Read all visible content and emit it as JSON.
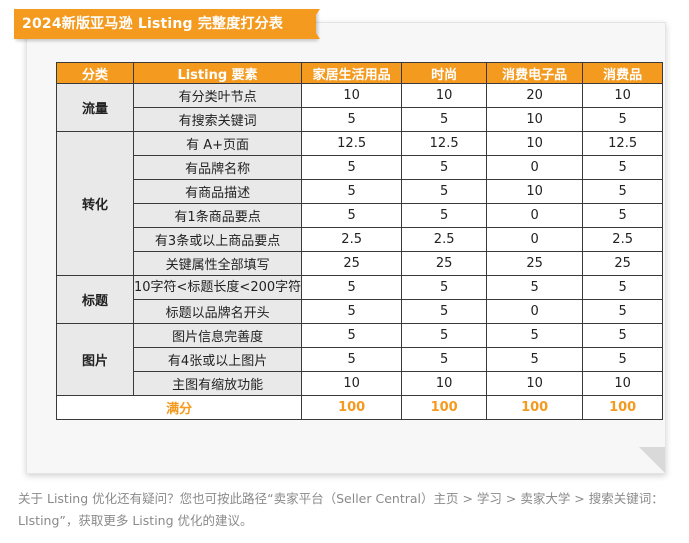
{
  "title": "2024新版亚马逊 Listing 完整度打分表",
  "headers": [
    "分类",
    "Listing 要素",
    "家居生活用品",
    "时尚",
    "消费电子品",
    "消费品"
  ],
  "groups": [
    {
      "category": "流量",
      "rows": [
        {
          "item": "有分类叶节点",
          "values": [
            "10",
            "10",
            "20",
            "10"
          ]
        },
        {
          "item": "有搜索关键词",
          "values": [
            "5",
            "5",
            "10",
            "5"
          ]
        }
      ]
    },
    {
      "category": "转化",
      "rows": [
        {
          "item": "有 A+页面",
          "values": [
            "12.5",
            "12.5",
            "10",
            "12.5"
          ]
        },
        {
          "item": "有品牌名称",
          "values": [
            "5",
            "5",
            "0",
            "5"
          ]
        },
        {
          "item": "有商品描述",
          "values": [
            "5",
            "5",
            "10",
            "5"
          ]
        },
        {
          "item": "有1条商品要点",
          "values": [
            "5",
            "5",
            "0",
            "5"
          ]
        },
        {
          "item": "有3条或以上商品要点",
          "values": [
            "2.5",
            "2.5",
            "0",
            "2.5"
          ]
        },
        {
          "item": "关键属性全部填写",
          "values": [
            "25",
            "25",
            "25",
            "25"
          ]
        }
      ]
    },
    {
      "category": "标题",
      "rows": [
        {
          "item": "10字符<标题长度<200字符",
          "values": [
            "5",
            "5",
            "5",
            "5"
          ]
        },
        {
          "item": "标题以品牌名开头",
          "values": [
            "5",
            "5",
            "0",
            "5"
          ]
        }
      ]
    },
    {
      "category": "图片",
      "rows": [
        {
          "item": "图片信息完善度",
          "values": [
            "5",
            "5",
            "5",
            "5"
          ]
        },
        {
          "item": "有4张或以上图片",
          "values": [
            "5",
            "5",
            "5",
            "5"
          ]
        },
        {
          "item": "主图有缩放功能",
          "values": [
            "10",
            "10",
            "10",
            "10"
          ]
        }
      ]
    }
  ],
  "total": {
    "label": "满分",
    "values": [
      "100",
      "100",
      "100",
      "100"
    ]
  },
  "footer_text": "关于 Listing 优化还有疑问？您也可按此路径“卖家平台（Seller Central）主页 > 学习 > 卖家大学 > 搜索关键词：LIsting”，获取更多 Listing 优化的建议。"
}
